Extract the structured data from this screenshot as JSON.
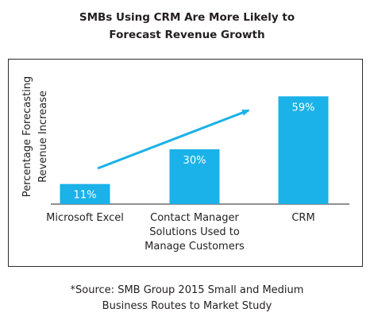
{
  "chart_data": {
    "type": "bar",
    "title_lines": [
      "SMBs Using CRM Are More Likely to",
      "Forecast Revenue Growth"
    ],
    "ylabel_lines": [
      "Percentage Forecasting",
      "Revenue Increase"
    ],
    "categories": [
      [
        "Microsoft Excel"
      ],
      [
        "Contact Manager",
        "Solutions Used to",
        "Manage Customers"
      ],
      [
        "CRM"
      ]
    ],
    "values": [
      11,
      30,
      59
    ],
    "data_labels": [
      "11%",
      "30%",
      "59%"
    ],
    "ylim": [
      0,
      70
    ],
    "grid": false,
    "bar_color": "#1ab2e8",
    "arrow_color": "#1ab2e8",
    "arrow": "upward trend arrow from first to last bar"
  },
  "footnote_lines": [
    "*Source: SMB Group 2015 Small and Medium",
    "Business Routes to Market Study"
  ]
}
